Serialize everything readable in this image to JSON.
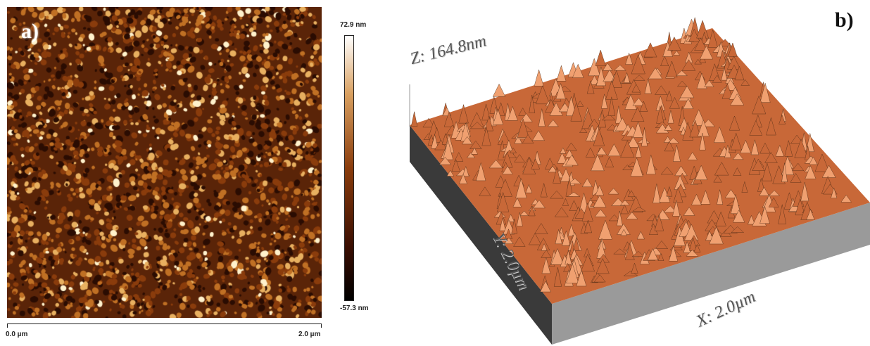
{
  "panel_a": {
    "letter": "a)",
    "colorbar": {
      "max_label": "72.9 nm",
      "min_label": "-57.3 nm"
    },
    "scale": {
      "start_label": "0.0 µm",
      "end_label": "2.0 µm"
    },
    "colors": {
      "low": "#000000",
      "mid": "#8a3c0c",
      "high": "#ffffff"
    }
  },
  "panel_b": {
    "letter": "b)",
    "z_label": "Z: 164.8nm",
    "y_label": "Y: 2.0µm",
    "x_label": "X: 2.0µm",
    "colors": {
      "surface": "#c86838",
      "peak": "#f0a070",
      "shadow": "#4a2a14",
      "base": "#9a9a9a"
    }
  }
}
